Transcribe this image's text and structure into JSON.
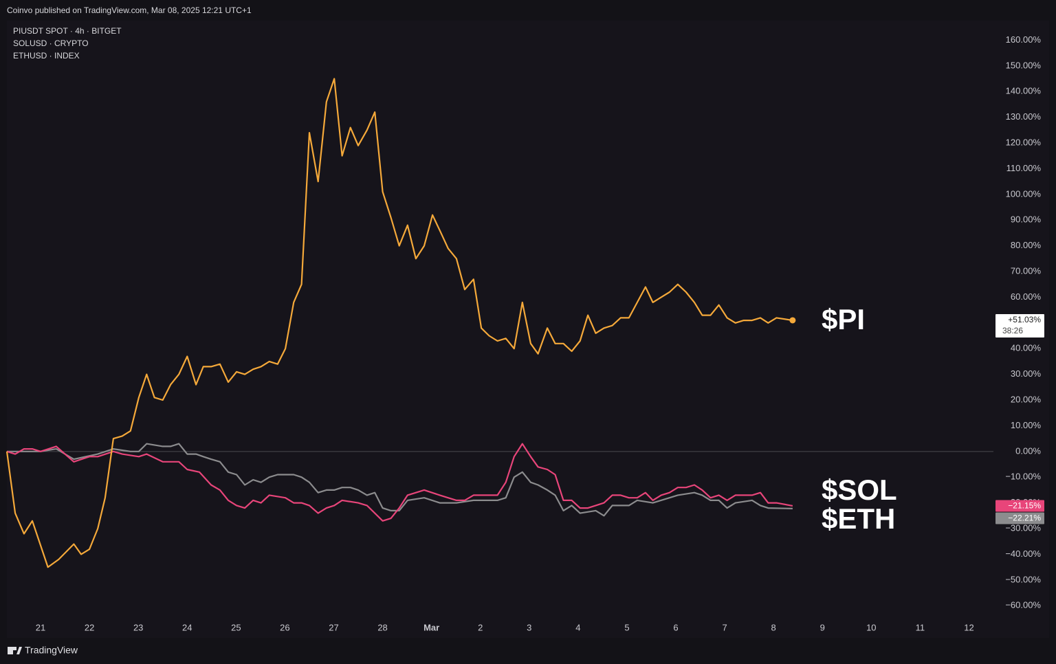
{
  "header": "Coinvo published on TradingView.com, Mar 08, 2025 12:21 UTC+1",
  "footer": "TradingView",
  "chart_data": {
    "type": "line",
    "xlim": [
      -0.69,
      19.5
    ],
    "xticks": [
      {
        "value": 0,
        "label": "21"
      },
      {
        "value": 1,
        "label": "22"
      },
      {
        "value": 2,
        "label": "23"
      },
      {
        "value": 3,
        "label": "24"
      },
      {
        "value": 4,
        "label": "25"
      },
      {
        "value": 5,
        "label": "26"
      },
      {
        "value": 6,
        "label": "27"
      },
      {
        "value": 7,
        "label": "28"
      },
      {
        "value": 8,
        "label": "Mar"
      },
      {
        "value": 9,
        "label": "2"
      },
      {
        "value": 10,
        "label": "3"
      },
      {
        "value": 11,
        "label": "4"
      },
      {
        "value": 12,
        "label": "5"
      },
      {
        "value": 13,
        "label": "6"
      },
      {
        "value": 14,
        "label": "7"
      },
      {
        "value": 15,
        "label": "8"
      },
      {
        "value": 16,
        "label": "9"
      },
      {
        "value": 17,
        "label": "10"
      },
      {
        "value": 18,
        "label": "11"
      },
      {
        "value": 19,
        "label": "12"
      }
    ],
    "ylim": [
      -72.5,
      167.6
    ],
    "yticks": [
      {
        "value": 160,
        "label": "160.00%"
      },
      {
        "value": 150,
        "label": "150.00%"
      },
      {
        "value": 140,
        "label": "140.00%"
      },
      {
        "value": 130,
        "label": "130.00%"
      },
      {
        "value": 120,
        "label": "120.00%"
      },
      {
        "value": 110,
        "label": "110.00%"
      },
      {
        "value": 100,
        "label": "100.00%"
      },
      {
        "value": 90,
        "label": "90.00%"
      },
      {
        "value": 80,
        "label": "80.00%"
      },
      {
        "value": 70,
        "label": "70.00%"
      },
      {
        "value": 60,
        "label": "60.00%"
      },
      {
        "value": 50,
        "label": "50.00%"
      },
      {
        "value": 40,
        "label": "40.00%"
      },
      {
        "value": 30,
        "label": "30.00%"
      },
      {
        "value": 20,
        "label": "20.00%"
      },
      {
        "value": 10,
        "label": "10.00%"
      },
      {
        "value": 0,
        "label": "0.00%"
      },
      {
        "value": -10,
        "label": "−10.00%"
      },
      {
        "value": -20,
        "label": "−20.00%"
      },
      {
        "value": -30,
        "label": "−30.00%"
      },
      {
        "value": -40,
        "label": "−40.00%"
      },
      {
        "value": -50,
        "label": "−50.00%"
      },
      {
        "value": -60,
        "label": "−60.00%"
      }
    ],
    "annotations": [
      "$PI",
      "$SOL",
      "$ETH"
    ],
    "countdown": "38:26",
    "series": [
      {
        "name": "PIUSDT SPOT · 4h · BITGET",
        "color": "#f5a93a",
        "last_label": "+51.03%",
        "x": [
          -0.69,
          -0.52,
          -0.34,
          -0.17,
          0.15,
          0.37,
          0.68,
          0.83,
          1.0,
          1.17,
          1.32,
          1.49,
          1.67,
          1.84,
          2.01,
          2.17,
          2.33,
          2.5,
          2.66,
          2.83,
          3.0,
          3.18,
          3.33,
          3.49,
          3.67,
          3.84,
          4.01,
          4.18,
          4.35,
          4.51,
          4.68,
          4.85,
          5.01,
          5.18,
          5.34,
          5.5,
          5.68,
          5.85,
          6.01,
          6.17,
          6.34,
          6.5,
          6.68,
          6.84,
          7.0,
          7.17,
          7.34,
          7.51,
          7.68,
          7.85,
          8.02,
          8.17,
          8.34,
          8.51,
          8.68,
          8.86,
          9.02,
          9.18,
          9.35,
          9.52,
          9.69,
          9.86,
          10.03,
          10.18,
          10.37,
          10.53,
          10.7,
          10.87,
          11.04,
          11.2,
          11.36,
          11.53,
          11.7,
          11.87,
          12.04,
          12.21,
          12.38,
          12.53,
          12.7,
          12.87,
          13.04,
          13.21,
          13.38,
          13.54,
          13.71,
          13.88,
          14.05,
          14.22,
          14.39,
          14.56,
          14.73,
          14.89,
          15.06,
          15.39
        ],
        "values": [
          0,
          -24,
          -32,
          -27,
          -45,
          -42,
          -36,
          -40,
          -38,
          -30,
          -18,
          5,
          6,
          8,
          21,
          30,
          21,
          20,
          26,
          30,
          37,
          26,
          33,
          33,
          34,
          27,
          31,
          30,
          32,
          33,
          35,
          34,
          40,
          58,
          65,
          124,
          105,
          136,
          145,
          115,
          126,
          119,
          125,
          132,
          101,
          91,
          80,
          88,
          75,
          80,
          92,
          86,
          79,
          75,
          63,
          67,
          48,
          45,
          43,
          44,
          40,
          58,
          42,
          38,
          48,
          42,
          42,
          39,
          43,
          53,
          46,
          48,
          49,
          52,
          52,
          58,
          64,
          58,
          60,
          62,
          65,
          62,
          58,
          53,
          53,
          57,
          52,
          50,
          51,
          51,
          52,
          50,
          52,
          51.03
        ]
      },
      {
        "name": "SOLUSD · CRYPTO",
        "color": "#e8457a",
        "last_label": "−21.15%",
        "x": [
          -0.69,
          -0.52,
          -0.34,
          -0.17,
          0,
          0.32,
          0.68,
          1.0,
          1.17,
          1.49,
          1.67,
          2.01,
          2.17,
          2.5,
          2.83,
          3.0,
          3.25,
          3.49,
          3.67,
          3.84,
          4.01,
          4.18,
          4.35,
          4.51,
          4.68,
          5.01,
          5.18,
          5.34,
          5.5,
          5.68,
          5.85,
          6.01,
          6.17,
          6.5,
          6.68,
          7.0,
          7.17,
          7.34,
          7.51,
          7.68,
          7.85,
          8.17,
          8.51,
          8.68,
          8.86,
          9.18,
          9.35,
          9.52,
          9.69,
          9.86,
          10.03,
          10.18,
          10.37,
          10.53,
          10.7,
          10.87,
          11.04,
          11.2,
          11.36,
          11.53,
          11.7,
          11.87,
          12.04,
          12.21,
          12.38,
          12.53,
          12.7,
          12.87,
          13.04,
          13.21,
          13.38,
          13.54,
          13.71,
          13.88,
          14.05,
          14.22,
          14.39,
          14.56,
          14.73,
          14.89,
          15.06,
          15.39
        ],
        "values": [
          0,
          -1,
          1,
          1,
          0,
          2,
          -4,
          -2,
          -2,
          0,
          -1,
          -2,
          -1,
          -4,
          -4,
          -7,
          -8,
          -13,
          -15,
          -19,
          -21,
          -22,
          -19,
          -20,
          -17,
          -18,
          -20,
          -20,
          -21,
          -24,
          -22,
          -21,
          -19,
          -20,
          -21,
          -27,
          -26,
          -22,
          -17,
          -16,
          -15,
          -17,
          -19,
          -19,
          -17,
          -17,
          -17,
          -12,
          -2,
          3,
          -2,
          -6,
          -7,
          -9,
          -19,
          -19,
          -22,
          -22,
          -21,
          -20,
          -17,
          -17,
          -18,
          -18,
          -16,
          -19,
          -17,
          -16,
          -14,
          -14,
          -13,
          -15,
          -18,
          -17,
          -19,
          -17,
          -17,
          -17,
          -16,
          -20,
          -20,
          -21.15
        ]
      },
      {
        "name": "ETHUSD · INDEX",
        "color": "#8c8c8e",
        "last_label": "−22.21%",
        "x": [
          -0.69,
          -0.34,
          0,
          0.32,
          0.68,
          1.17,
          1.49,
          1.84,
          2.01,
          2.17,
          2.5,
          2.66,
          2.83,
          3.0,
          3.18,
          3.33,
          3.49,
          3.67,
          3.84,
          4.01,
          4.18,
          4.35,
          4.51,
          4.68,
          4.85,
          5.18,
          5.34,
          5.5,
          5.68,
          5.85,
          6.01,
          6.17,
          6.34,
          6.5,
          6.68,
          6.84,
          7.0,
          7.17,
          7.34,
          7.51,
          7.85,
          8.17,
          8.51,
          8.86,
          9.18,
          9.35,
          9.52,
          9.69,
          9.86,
          10.03,
          10.18,
          10.37,
          10.53,
          10.7,
          10.87,
          11.04,
          11.36,
          11.53,
          11.7,
          12.04,
          12.21,
          12.53,
          12.87,
          13.04,
          13.38,
          13.54,
          13.71,
          13.88,
          14.05,
          14.22,
          14.56,
          14.73,
          14.89,
          15.39
        ],
        "values": [
          0,
          0,
          0,
          1,
          -3,
          -1,
          1,
          0,
          0,
          3,
          2,
          2,
          3,
          -1,
          -1,
          -2,
          -3,
          -4,
          -8,
          -9,
          -13,
          -11,
          -12,
          -10,
          -9,
          -9,
          -10,
          -12,
          -16,
          -15,
          -15,
          -14,
          -14,
          -15,
          -17,
          -16,
          -22,
          -23,
          -23,
          -19,
          -18,
          -20,
          -20,
          -19,
          -19,
          -19,
          -18,
          -10,
          -8,
          -12,
          -13,
          -15,
          -17,
          -23,
          -21,
          -24,
          -23,
          -25,
          -21,
          -21,
          -19,
          -20,
          -18,
          -17,
          -16,
          -17,
          -19,
          -19,
          -22,
          -20,
          -19,
          -21,
          -22,
          -22.21
        ]
      }
    ]
  }
}
